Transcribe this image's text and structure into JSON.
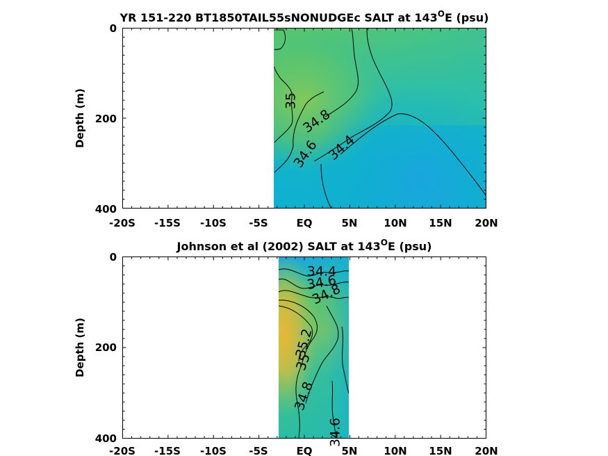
{
  "chart_data": [
    {
      "type": "heatmap",
      "title": "YR 151-220 BT1850TAIL55sNONUDGEc SALT at 143",
      "title_superscript": "O",
      "title_suffix": "E (psu)",
      "xlabel": "",
      "ylabel": "Depth (m)",
      "xlim": [
        -20,
        20
      ],
      "ylim": [
        400,
        0
      ],
      "y_reversed": true,
      "x_tick_labels": [
        "-20S",
        "-15S",
        "-10S",
        "-5S",
        "EQ",
        "5N",
        "10N",
        "15N",
        "20N"
      ],
      "y_tick_labels": [
        "0",
        "200",
        "400"
      ],
      "data_extent_lat": [
        -3,
        20
      ],
      "grid": false,
      "colormap": "parula",
      "contour_labels": [
        {
          "text": "35",
          "lat": -1.5,
          "depth": 130
        },
        {
          "text": "34.8",
          "lat": 1.2,
          "depth": 180
        },
        {
          "text": "34.6",
          "lat": 0.0,
          "depth": 235
        },
        {
          "text": "34.4",
          "lat": 5.0,
          "depth": 225
        }
      ]
    },
    {
      "type": "heatmap",
      "title": "Johnson et al (2002) SALT at 143",
      "title_superscript": "O",
      "title_suffix": "E (psu)",
      "xlabel": "",
      "ylabel": "Depth (m)",
      "xlim": [
        -20,
        20
      ],
      "ylim": [
        400,
        0
      ],
      "y_reversed": true,
      "x_tick_labels": [
        "-20S",
        "-15S",
        "-10S",
        "-5S",
        "EQ",
        "5N",
        "10N",
        "15N",
        "20N"
      ],
      "y_tick_labels": [
        "0",
        "200",
        "400"
      ],
      "data_extent_lat": [
        -2.6,
        5
      ],
      "grid": false,
      "colormap": "parula",
      "contour_labels": [
        {
          "text": "34.4",
          "lat": 2.0,
          "depth": 35
        },
        {
          "text": "34.6",
          "lat": 2.0,
          "depth": 60
        },
        {
          "text": "34.8",
          "lat": 2.5,
          "depth": 85
        },
        {
          "text": "35.2",
          "lat": 0.0,
          "depth": 190
        },
        {
          "text": "35",
          "lat": 0.0,
          "depth": 225
        },
        {
          "text": "34.8",
          "lat": 0.0,
          "depth": 305
        },
        {
          "text": "34.6",
          "lat": 3.0,
          "depth": 385
        }
      ]
    }
  ]
}
